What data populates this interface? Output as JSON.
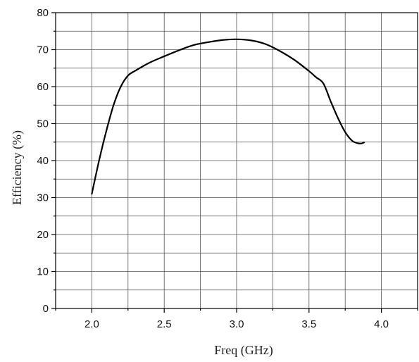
{
  "chart_data": {
    "type": "line",
    "title": "",
    "xlabel": "Freq (GHz)",
    "ylabel": "Efficiency (%)",
    "xlim": [
      1.75,
      4.25
    ],
    "ylim": [
      0,
      80
    ],
    "x_ticks": [
      2.0,
      2.5,
      3.0,
      3.5,
      4.0
    ],
    "x_tick_labels": [
      "2.0",
      "2.5",
      "3.0",
      "3.5",
      "4.0"
    ],
    "y_ticks": [
      0,
      10,
      20,
      30,
      40,
      50,
      60,
      70,
      80
    ],
    "y_tick_labels": [
      "0",
      "10",
      "20",
      "30",
      "40",
      "50",
      "60",
      "70",
      "80"
    ],
    "grid": true,
    "legend": "none",
    "series": [
      {
        "color": "#000000",
        "x": [
          2.0,
          2.05,
          2.1,
          2.15,
          2.2,
          2.25,
          2.3,
          2.4,
          2.5,
          2.6,
          2.7,
          2.8,
          2.9,
          3.0,
          3.1,
          3.2,
          3.3,
          3.4,
          3.5,
          3.55,
          3.6,
          3.65,
          3.7,
          3.75,
          3.8,
          3.85,
          3.88
        ],
        "values": [
          31,
          40,
          48,
          55,
          60,
          63,
          64.3,
          66.5,
          68.2,
          69.8,
          71.2,
          72,
          72.6,
          72.8,
          72.5,
          71.5,
          69.6,
          67.2,
          64.2,
          62.5,
          60.8,
          56,
          51.5,
          47.7,
          45.3,
          44.6,
          44.9
        ]
      }
    ]
  }
}
